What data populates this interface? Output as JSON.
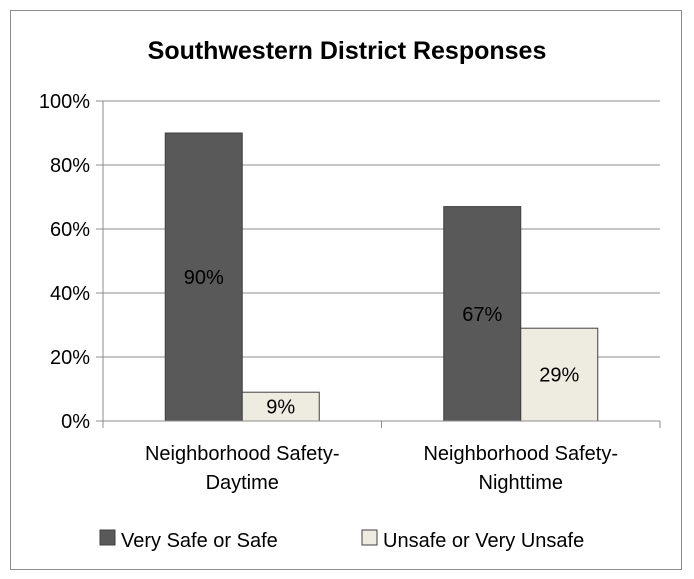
{
  "chart_data": {
    "type": "bar",
    "title": "Southwestern District Responses",
    "xlabel": "",
    "ylabel": "",
    "categories": [
      [
        "Neighborhood Safety-",
        "Daytime"
      ],
      [
        "Neighborhood Safety-",
        "Nighttime"
      ]
    ],
    "series": [
      {
        "name": "Very Safe or Safe",
        "values": [
          90,
          67
        ],
        "labels": [
          "90%",
          "67%"
        ],
        "color": "#595959"
      },
      {
        "name": "Unsafe or Very Unsafe",
        "values": [
          9,
          29
        ],
        "labels": [
          "9%",
          "29%"
        ],
        "color": "#eeece1"
      }
    ],
    "ylim": [
      0,
      100
    ],
    "yticks": [
      {
        "value": 0,
        "label": "0%"
      },
      {
        "value": 20,
        "label": "20%"
      },
      {
        "value": 40,
        "label": "40%"
      },
      {
        "value": 60,
        "label": "60%"
      },
      {
        "value": 80,
        "label": "80%"
      },
      {
        "value": 100,
        "label": "100%"
      }
    ],
    "grid": true,
    "legend": "bottom"
  }
}
